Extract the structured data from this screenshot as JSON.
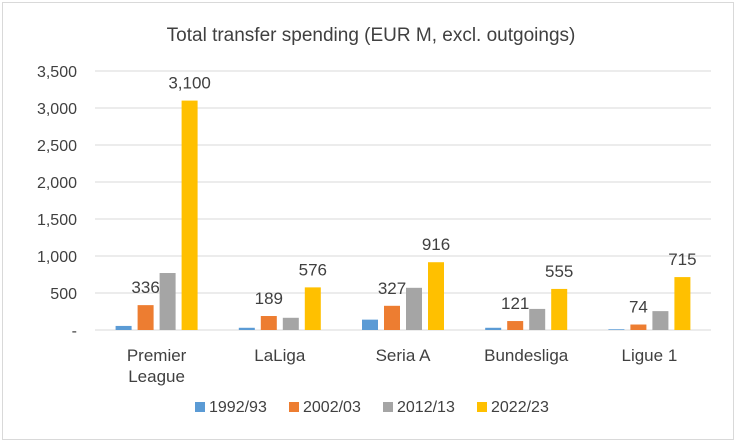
{
  "chart_data": {
    "type": "bar",
    "title": "Total transfer spending (EUR M, excl. outgoings)",
    "xlabel": "",
    "ylabel": "",
    "ylim": [
      0,
      3500
    ],
    "yticks": [
      0,
      500,
      1000,
      1500,
      2000,
      2500,
      3000,
      3500
    ],
    "ytick_labels": [
      "-",
      "500",
      "1,000",
      "1,500",
      "2,000",
      "2,500",
      "3,000",
      "3,500"
    ],
    "categories": [
      "Premier League",
      "LaLiga",
      "Seria A",
      "Bundesliga",
      "Ligue 1"
    ],
    "series": [
      {
        "name": "1992/93",
        "color": "#5b9bd5",
        "values": [
          55,
          30,
          140,
          30,
          10
        ],
        "labels": [
          "",
          "",
          "",
          "",
          ""
        ]
      },
      {
        "name": "2002/03",
        "color": "#ed7d31",
        "values": [
          336,
          189,
          327,
          121,
          74
        ],
        "labels": [
          "336",
          "189",
          "327",
          "121",
          "74"
        ]
      },
      {
        "name": "2012/13",
        "color": "#a5a5a5",
        "values": [
          770,
          165,
          570,
          285,
          255
        ],
        "labels": [
          "",
          "",
          "",
          "",
          ""
        ]
      },
      {
        "name": "2022/23",
        "color": "#ffc000",
        "values": [
          3100,
          576,
          916,
          555,
          715
        ],
        "labels": [
          "3,100",
          "576",
          "916",
          "555",
          "715"
        ]
      }
    ],
    "grid": true,
    "legend_position": "bottom"
  }
}
